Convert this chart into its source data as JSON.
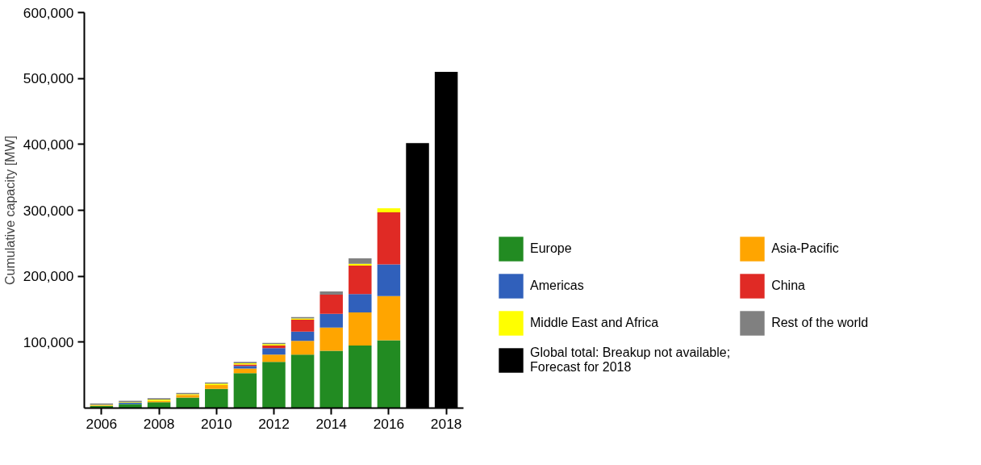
{
  "chart_data": {
    "type": "bar",
    "stacked": true,
    "ylabel": "Cumulative capacity [MW]",
    "x": [
      2006,
      2007,
      2008,
      2009,
      2010,
      2011,
      2012,
      2013,
      2014,
      2015,
      2016,
      2017,
      2018
    ],
    "series": [
      {
        "name": "Europe",
        "color": "#228b22",
        "values": [
          3000,
          6000,
          9000,
          16000,
          29000,
          53000,
          70000,
          81000,
          87000,
          95000,
          103000,
          null,
          null
        ]
      },
      {
        "name": "Asia-Pacific",
        "color": "#ffa500",
        "values": [
          1000,
          0,
          2000,
          4000,
          6000,
          7000,
          11000,
          21000,
          35000,
          50000,
          67000,
          null,
          null
        ]
      },
      {
        "name": "Americas",
        "color": "#3060bb",
        "values": [
          0,
          2000,
          0,
          0,
          0,
          4000,
          10000,
          14000,
          21000,
          28000,
          48000,
          null,
          null
        ]
      },
      {
        "name": "China",
        "color": "#e02a25",
        "values": [
          0,
          0,
          0,
          0,
          0,
          2000,
          4000,
          18000,
          29000,
          43000,
          79000,
          null,
          null
        ]
      },
      {
        "name": "Middle East and Africa",
        "color": "#ffff00",
        "values": [
          1000,
          1000,
          2000,
          1000,
          2000,
          2000,
          2000,
          2000,
          0,
          3000,
          6000,
          null,
          null
        ]
      },
      {
        "name": "Rest of the world",
        "color": "#808080",
        "values": [
          2000,
          2000,
          2000,
          2000,
          2000,
          2000,
          2000,
          2000,
          5000,
          8000,
          0,
          null,
          null
        ]
      },
      {
        "name": "Global total: Breakup not available;\nForecast for 2018",
        "color": "#000000",
        "values": [
          null,
          null,
          null,
          null,
          null,
          null,
          null,
          null,
          null,
          null,
          null,
          402000,
          510000
        ]
      }
    ],
    "xlim": [
      2005.4,
      2018.6
    ],
    "xticks": [
      2006,
      2008,
      2010,
      2012,
      2014,
      2016,
      2018
    ],
    "ylim": [
      0,
      600000
    ],
    "yticks": [
      {
        "value": 100000,
        "label": "100,000"
      },
      {
        "value": 200000,
        "label": "200,000"
      },
      {
        "value": 300000,
        "label": "300,000"
      },
      {
        "value": 400000,
        "label": "400,000"
      },
      {
        "value": 500000,
        "label": "500,000"
      },
      {
        "value": 600000,
        "label": "600,000"
      }
    ],
    "grid": false,
    "legend": "right"
  }
}
